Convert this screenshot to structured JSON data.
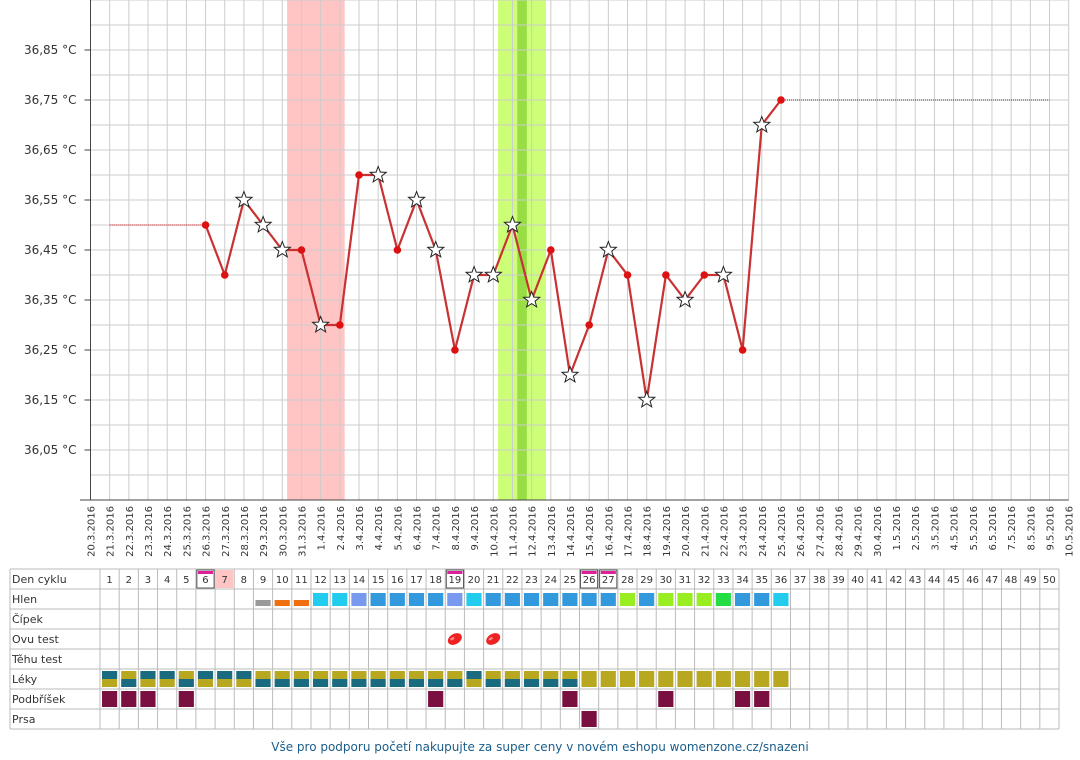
{
  "chart_data": {
    "type": "line",
    "y_tick_labels": [
      "36,05 °C",
      "36,15 °C",
      "36,25 °C",
      "36,35 °C",
      "36,45 °C",
      "36,55 °C",
      "36,65 °C",
      "36,75 °C",
      "36,85 °C"
    ],
    "ylim": [
      35.95,
      36.95
    ],
    "grid": true,
    "x_dates": [
      "20.3.2016",
      "21.3.2016",
      "22.3.2016",
      "23.3.2016",
      "24.3.2016",
      "25.3.2016",
      "26.3.2016",
      "27.3.2016",
      "28.3.2016",
      "29.3.2016",
      "30.3.2016",
      "31.3.2016",
      "1.4.2016",
      "2.4.2016",
      "3.4.2016",
      "4.4.2016",
      "5.4.2016",
      "6.4.2016",
      "7.4.2016",
      "8.4.2016",
      "9.4.2016",
      "10.4.2016",
      "11.4.2016",
      "12.4.2016",
      "13.4.2016",
      "14.4.2016",
      "15.4.2016",
      "16.4.2016",
      "17.4.2016",
      "18.4.2016",
      "19.4.2016",
      "20.4.2016",
      "21.4.2016",
      "22.4.2016",
      "23.4.2016",
      "24.4.2016",
      "25.4.2016",
      "26.4.2016",
      "27.4.2016",
      "28.4.2016",
      "29.4.2016",
      "30.4.2016",
      "1.5.2016",
      "2.5.2016",
      "3.5.2016",
      "4.5.2016",
      "5.5.2016",
      "6.5.2016",
      "7.5.2016",
      "8.5.2016",
      "9.5.2016",
      "10.5.2016"
    ],
    "series": [
      {
        "values": [
          {
            "x": "26.3.2016",
            "y": 36.5,
            "star": false
          },
          {
            "x": "27.3.2016",
            "y": 36.4,
            "star": false
          },
          {
            "x": "28.3.2016",
            "y": 36.55,
            "star": true
          },
          {
            "x": "29.3.2016",
            "y": 36.5,
            "star": true
          },
          {
            "x": "30.3.2016",
            "y": 36.45,
            "star": true
          },
          {
            "x": "31.3.2016",
            "y": 36.45,
            "star": false
          },
          {
            "x": "1.4.2016",
            "y": 36.3,
            "star": true
          },
          {
            "x": "2.4.2016",
            "y": 36.3,
            "star": false
          },
          {
            "x": "3.4.2016",
            "y": 36.6,
            "star": false
          },
          {
            "x": "4.4.2016",
            "y": 36.6,
            "star": true
          },
          {
            "x": "5.4.2016",
            "y": 36.45,
            "star": false
          },
          {
            "x": "6.4.2016",
            "y": 36.55,
            "star": true
          },
          {
            "x": "7.4.2016",
            "y": 36.45,
            "star": true
          },
          {
            "x": "8.4.2016",
            "y": 36.25,
            "star": false
          },
          {
            "x": "9.4.2016",
            "y": 36.4,
            "star": true
          },
          {
            "x": "10.4.2016",
            "y": 36.4,
            "star": true
          },
          {
            "x": "11.4.2016",
            "y": 36.5,
            "star": true
          },
          {
            "x": "12.4.2016",
            "y": 36.35,
            "star": true
          },
          {
            "x": "13.4.2016",
            "y": 36.45,
            "star": false
          },
          {
            "x": "14.4.2016",
            "y": 36.2,
            "star": true
          },
          {
            "x": "15.4.2016",
            "y": 36.3,
            "star": false
          },
          {
            "x": "16.4.2016",
            "y": 36.45,
            "star": true
          },
          {
            "x": "17.4.2016",
            "y": 36.4,
            "star": false
          },
          {
            "x": "18.4.2016",
            "y": 36.15,
            "star": true
          },
          {
            "x": "19.4.2016",
            "y": 36.4,
            "star": false
          },
          {
            "x": "20.4.2016",
            "y": 36.35,
            "star": true
          },
          {
            "x": "21.4.2016",
            "y": 36.4,
            "star": false
          },
          {
            "x": "22.4.2016",
            "y": 36.4,
            "star": true
          },
          {
            "x": "23.4.2016",
            "y": 36.25,
            "star": false
          },
          {
            "x": "24.4.2016",
            "y": 36.7,
            "star": true
          },
          {
            "x": "25.4.2016",
            "y": 36.75,
            "star": false
          }
        ]
      }
    ],
    "reference_lines": [
      {
        "from": "21.3.2016",
        "to": "26.3.2016",
        "y": 36.5
      },
      {
        "from": "25.4.2016",
        "to": "9.5.2016",
        "y": 36.75
      }
    ],
    "shaded_bands": [
      {
        "from": 20.5,
        "to": 26.5,
        "color": "#ffc4c4"
      },
      {
        "from": 42.5,
        "to": 47.5,
        "color": "#ccff77"
      },
      {
        "from": 44.5,
        "to": 45.5,
        "color": "#99dd44"
      }
    ],
    "line_color": "#c83232",
    "marker_color": "#dd1111"
  },
  "table": {
    "row_labels": [
      "Den cyklu",
      "Hlen",
      "Čípek",
      "Ovu test",
      "Těhu test",
      "Léky",
      "Podbříšek",
      "Prsa"
    ],
    "day_numbers": [
      "1",
      "2",
      "3",
      "4",
      "5",
      "6",
      "7",
      "8",
      "9",
      "10",
      "11",
      "12",
      "13",
      "14",
      "15",
      "16",
      "17",
      "18",
      "19",
      "20",
      "21",
      "22",
      "23",
      "24",
      "25",
      "26",
      "27",
      "28",
      "29",
      "30",
      "31",
      "32",
      "33",
      "34",
      "35",
      "36",
      "37",
      "38",
      "39",
      "40",
      "41",
      "42",
      "43",
      "44",
      "45",
      "46",
      "47",
      "48",
      "49",
      "50"
    ],
    "highlight_days": [
      6,
      19,
      26,
      27
    ],
    "red_day": 7,
    "hlen": [
      {
        "day": 9,
        "color": "#999999",
        "type": "small"
      },
      {
        "day": 10,
        "color": "#f07010",
        "type": "small"
      },
      {
        "day": 11,
        "color": "#f07010",
        "type": "small"
      },
      {
        "day": 12,
        "color": "#22ccee"
      },
      {
        "day": 13,
        "color": "#22ccee"
      },
      {
        "day": 14,
        "color": "#7799ee"
      },
      {
        "day": 15,
        "color": "#3399dd"
      },
      {
        "day": 16,
        "color": "#3399dd"
      },
      {
        "day": 17,
        "color": "#3399dd"
      },
      {
        "day": 18,
        "color": "#3399dd"
      },
      {
        "day": 19,
        "color": "#7799ee"
      },
      {
        "day": 20,
        "color": "#22ccee"
      },
      {
        "day": 21,
        "color": "#3399dd"
      },
      {
        "day": 22,
        "color": "#3399dd"
      },
      {
        "day": 23,
        "color": "#3399dd"
      },
      {
        "day": 24,
        "color": "#3399dd"
      },
      {
        "day": 25,
        "color": "#3399dd"
      },
      {
        "day": 26,
        "color": "#3399dd"
      },
      {
        "day": 27,
        "color": "#3399dd"
      },
      {
        "day": 28,
        "color": "#99ee22"
      },
      {
        "day": 29,
        "color": "#3399dd"
      },
      {
        "day": 30,
        "color": "#99ee22"
      },
      {
        "day": 31,
        "color": "#99ee22"
      },
      {
        "day": 32,
        "color": "#99ee22"
      },
      {
        "day": 33,
        "color": "#22dd44"
      },
      {
        "day": 34,
        "color": "#3399dd"
      },
      {
        "day": 35,
        "color": "#3399dd"
      },
      {
        "day": 36,
        "color": "#22ccee"
      }
    ],
    "ovu_test_days": [
      19,
      21
    ],
    "leky": [
      {
        "day": 1,
        "pattern": "TY"
      },
      {
        "day": 2,
        "pattern": "YT"
      },
      {
        "day": 3,
        "pattern": "TY"
      },
      {
        "day": 4,
        "pattern": "TY"
      },
      {
        "day": 5,
        "pattern": "YT"
      },
      {
        "day": 6,
        "pattern": "TY"
      },
      {
        "day": 7,
        "pattern": "TY"
      },
      {
        "day": 8,
        "pattern": "TY"
      },
      {
        "day": 9,
        "pattern": "YT"
      },
      {
        "day": 10,
        "pattern": "YT"
      },
      {
        "day": 11,
        "pattern": "YT"
      },
      {
        "day": 12,
        "pattern": "YT"
      },
      {
        "day": 13,
        "pattern": "YT"
      },
      {
        "day": 14,
        "pattern": "YT"
      },
      {
        "day": 15,
        "pattern": "YT"
      },
      {
        "day": 16,
        "pattern": "YT"
      },
      {
        "day": 17,
        "pattern": "YT"
      },
      {
        "day": 18,
        "pattern": "YT"
      },
      {
        "day": 19,
        "pattern": "YT"
      },
      {
        "day": 20,
        "pattern": "TY"
      },
      {
        "day": 21,
        "pattern": "YT"
      },
      {
        "day": 22,
        "pattern": "YT"
      },
      {
        "day": 23,
        "pattern": "YT"
      },
      {
        "day": 24,
        "pattern": "YT"
      },
      {
        "day": 25,
        "pattern": "YT"
      },
      {
        "day": 26,
        "pattern": "Y"
      },
      {
        "day": 27,
        "pattern": "Y"
      },
      {
        "day": 28,
        "pattern": "Y"
      },
      {
        "day": 29,
        "pattern": "Y"
      },
      {
        "day": 30,
        "pattern": "Y"
      },
      {
        "day": 31,
        "pattern": "Y"
      },
      {
        "day": 32,
        "pattern": "Y"
      },
      {
        "day": 33,
        "pattern": "Y"
      },
      {
        "day": 34,
        "pattern": "Y"
      },
      {
        "day": 35,
        "pattern": "Y"
      },
      {
        "day": 36,
        "pattern": "Y"
      }
    ],
    "leky_colors": {
      "teal": "#1a6a80",
      "yellow": "#b8a820"
    },
    "podbrisek_days": [
      1,
      2,
      3,
      5,
      18,
      25,
      30,
      34,
      35
    ],
    "prsa_days": [
      26
    ],
    "maroon": "#7a1040"
  },
  "footer": "Vše pro podporu početí nakupujte za super ceny v novém eshopu womenzone.cz/snazeni"
}
